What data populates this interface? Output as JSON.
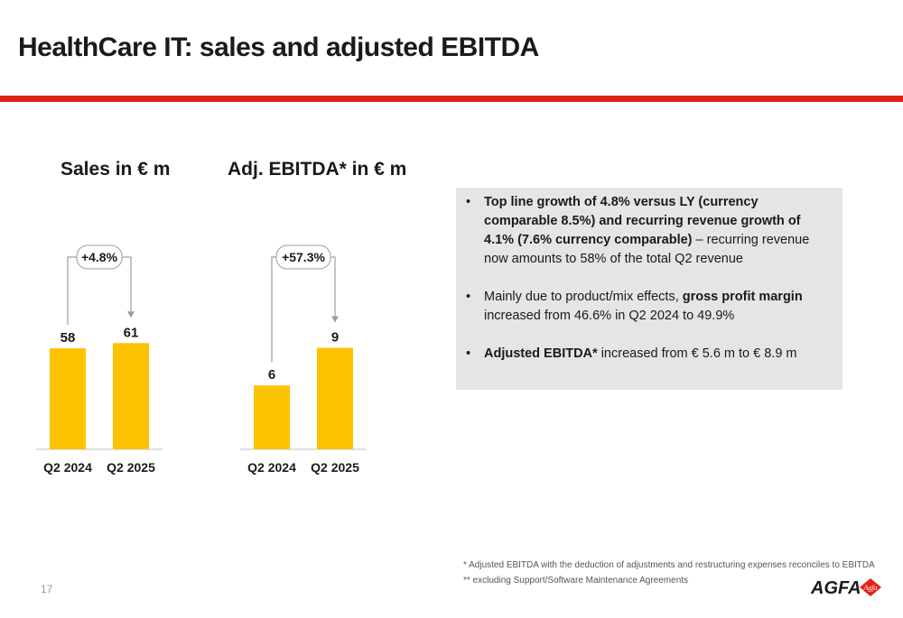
{
  "slide": {
    "title": "HealthCare IT: sales and adjusted EBITDA",
    "page_number": "17"
  },
  "colors": {
    "bar": "#FDC300",
    "accent_rule": "#E2231A",
    "growth_arrow": "#9E9E9E",
    "logo_text": "#1A1A1A",
    "logo_diamond": "#E2231A"
  },
  "chart_data": [
    {
      "type": "bar",
      "title": "Sales in € m",
      "categories": [
        "Q2 2024",
        "Q2 2025"
      ],
      "values": [
        58,
        61
      ],
      "data_labels": [
        "58",
        "61"
      ],
      "growth_label": "+4.8%",
      "grid": false,
      "legend": "none"
    },
    {
      "type": "bar",
      "title": "Adj. EBITDA* in € m",
      "categories": [
        "Q2 2024",
        "Q2 2025"
      ],
      "values": [
        5.6,
        8.9
      ],
      "data_labels": [
        "6",
        "9"
      ],
      "growth_label": "+57.3%",
      "grid": false,
      "legend": "none"
    }
  ],
  "bullets": [
    [
      {
        "text": "Top line growth of 4.8% versus LY (currency comparable 8.5%) and recurring revenue growth of 4.1% (7.6% currency comparable)",
        "bold": true
      },
      {
        "text": " – recurring revenue now amounts to 58% of the total Q2 revenue",
        "bold": false
      }
    ],
    [
      {
        "text": "Mainly due to product/mix effects, ",
        "bold": false
      },
      {
        "text": "gross profit margin",
        "bold": true
      },
      {
        "text": " increased from 46.6% in Q2 2024 to 49.9%",
        "bold": false
      }
    ],
    [
      {
        "text": "Adjusted EBITDA*",
        "bold": true
      },
      {
        "text": " increased from € 5.6 m to € 8.9 m",
        "bold": false
      }
    ]
  ],
  "footnotes": {
    "note1": "* Adjusted EBITDA with the deduction of adjustments and restructuring expenses reconciles to EBITDA",
    "note2": "** excluding Support/Software Maintenance Agreements"
  },
  "logo": {
    "text": "AGFA",
    "mark_text": "Agfa"
  }
}
